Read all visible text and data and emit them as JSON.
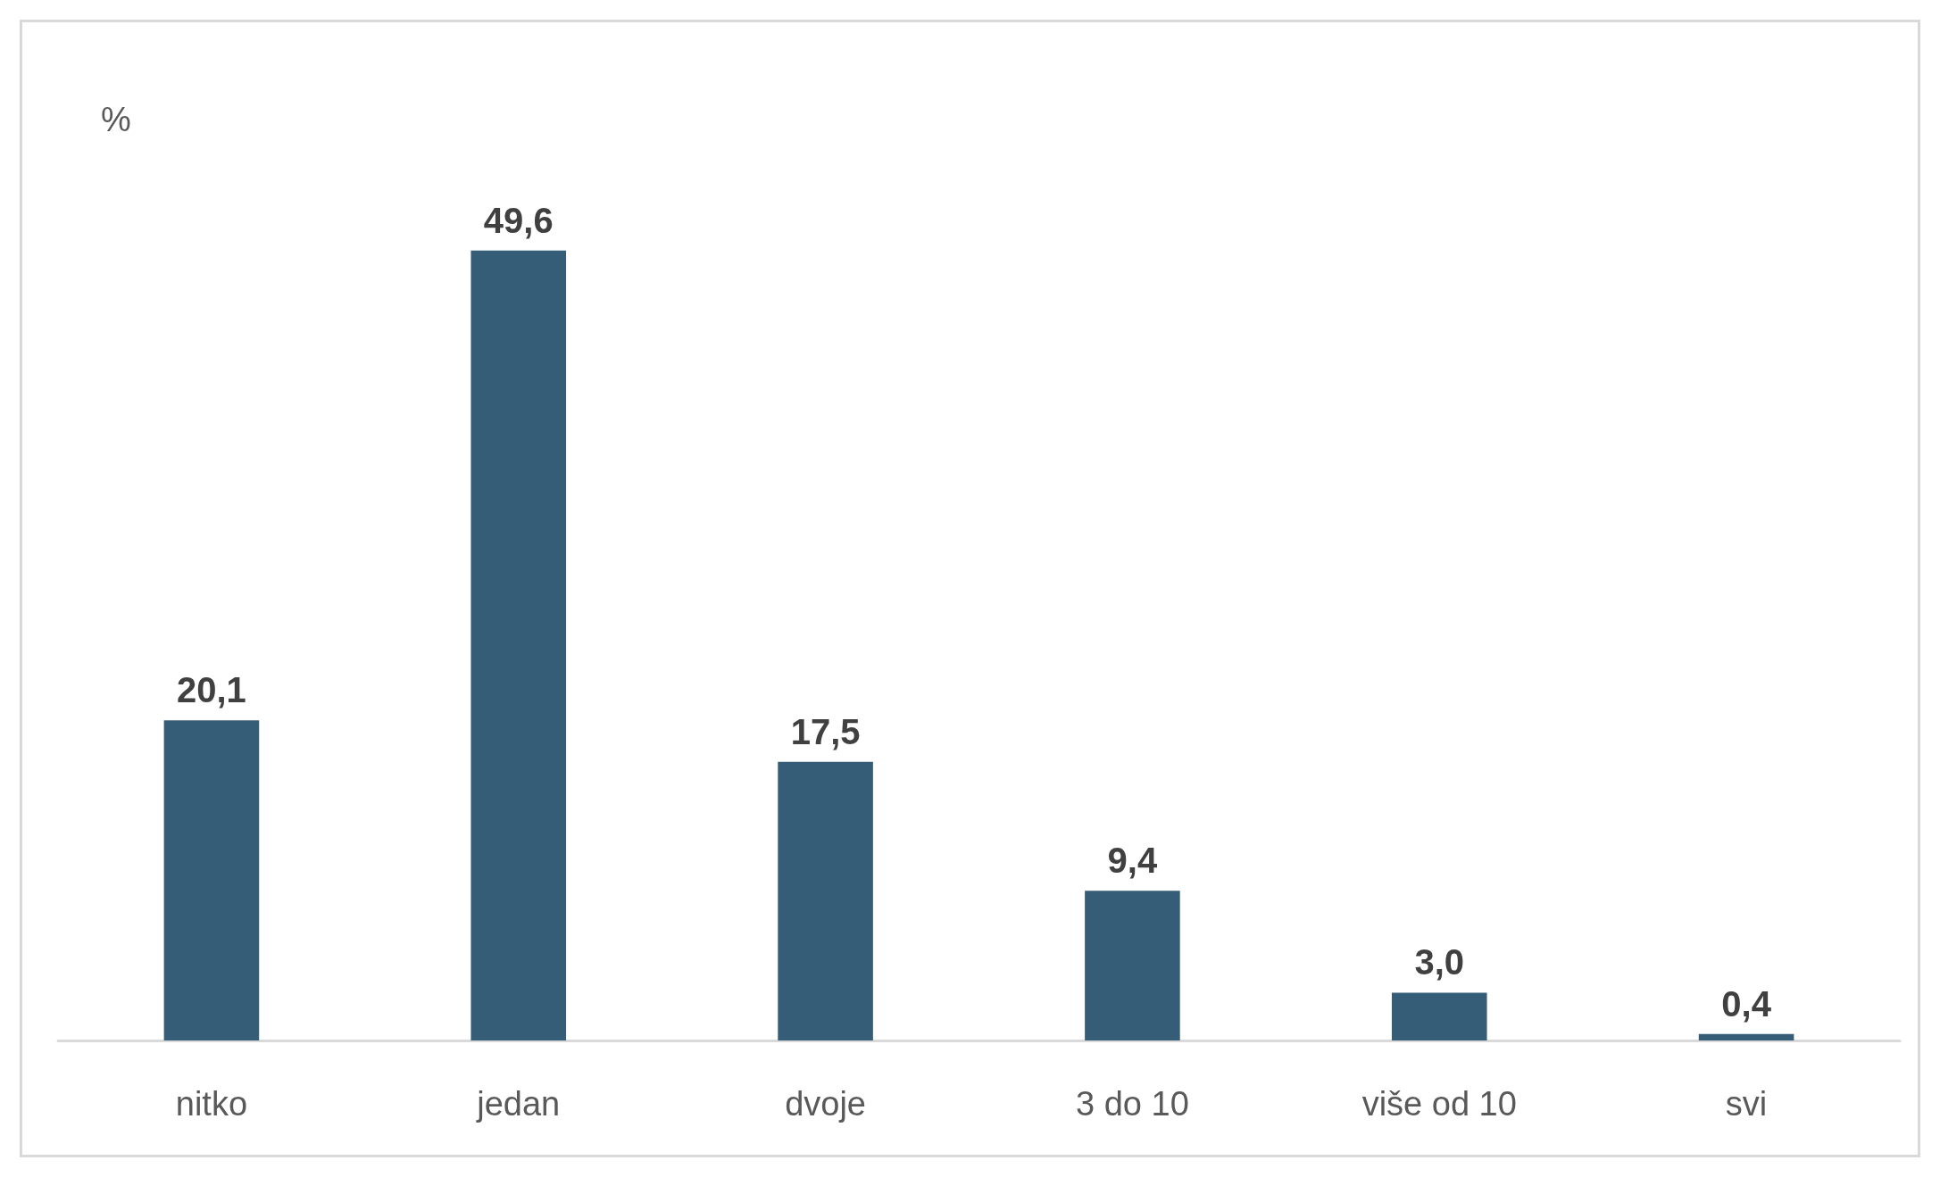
{
  "chart_data": {
    "type": "bar",
    "ylabel": "%",
    "categories": [
      "nitko",
      "jedan",
      "dvoje",
      "3 do 10",
      "više od 10",
      "svi"
    ],
    "values": [
      20.1,
      49.6,
      17.5,
      9.4,
      3.0,
      0.4
    ],
    "value_labels": [
      "20,1",
      "49,6",
      "17,5",
      "9,4",
      "3,0",
      "0,4"
    ],
    "color": "#365d77"
  }
}
